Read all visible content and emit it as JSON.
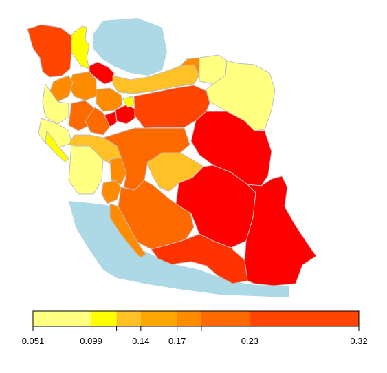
{
  "map": {
    "water_color": "#add8e6",
    "province_border_color": "#bdbdbd",
    "provinces": [
      {
        "name": "west-azerbaijan-north",
        "color": "#ff4500",
        "value": 0.2
      },
      {
        "name": "ardabil",
        "color": "#ffff00",
        "value": 0.1
      },
      {
        "name": "guilan",
        "color": "#ff0000",
        "value": 0.3
      },
      {
        "name": "mazandaran",
        "color": "#ffc125",
        "value": 0.13
      },
      {
        "name": "golestan",
        "color": "#ff8c00",
        "value": 0.16
      },
      {
        "name": "north-khorasan",
        "color": "#ffff80",
        "value": 0.06
      },
      {
        "name": "razavi-khorasan",
        "color": "#ffff80",
        "value": 0.06
      },
      {
        "name": "south-khorasan",
        "color": "#ff0000",
        "value": 0.28
      },
      {
        "name": "semnan",
        "color": "#ff4500",
        "value": 0.21
      },
      {
        "name": "tehran",
        "color": "#ff0000",
        "value": 0.3
      },
      {
        "name": "qom",
        "color": "#ff0000",
        "value": 0.27
      },
      {
        "name": "alborz",
        "color": "#ffff00",
        "value": 0.1
      },
      {
        "name": "qazvin",
        "color": "#ff8c00",
        "value": 0.16
      },
      {
        "name": "zanjan",
        "color": "#ff8c00",
        "value": 0.15
      },
      {
        "name": "east-azerbaijan",
        "color": "#ff8c00",
        "value": 0.16
      },
      {
        "name": "kurdistan",
        "color": "#ffff80",
        "value": 0.07
      },
      {
        "name": "kermanshah",
        "color": "#ffff80",
        "value": 0.07
      },
      {
        "name": "ilam",
        "color": "#ffff00",
        "value": 0.1
      },
      {
        "name": "hamadan",
        "color": "#ff6a00",
        "value": 0.18
      },
      {
        "name": "markazi",
        "color": "#ff6a00",
        "value": 0.18
      },
      {
        "name": "lorestan",
        "color": "#ffff80",
        "value": 0.07
      },
      {
        "name": "khuzestan",
        "color": "#ffc125",
        "value": 0.13
      },
      {
        "name": "chaharmahal",
        "color": "#ff8c00",
        "value": 0.15
      },
      {
        "name": "kohgiluyeh",
        "color": "#ff8c00",
        "value": 0.15
      },
      {
        "name": "isfahan",
        "color": "#ff6a00",
        "value": 0.18
      },
      {
        "name": "yazd",
        "color": "#ffc125",
        "value": 0.13
      },
      {
        "name": "fars",
        "color": "#ff6a00",
        "value": 0.18
      },
      {
        "name": "bushehr",
        "color": "#ff8c00",
        "value": 0.16
      },
      {
        "name": "kerman",
        "color": "#ff0000",
        "value": 0.28
      },
      {
        "name": "hormozgan",
        "color": "#ff3300",
        "value": 0.24
      },
      {
        "name": "sistan-baluchestan",
        "color": "#ff0000",
        "value": 0.3
      }
    ]
  },
  "legend": {
    "breaks": [
      0.051,
      0.099,
      0.12,
      0.14,
      0.17,
      0.19,
      0.23,
      0.32
    ],
    "colors": [
      "#ffff80",
      "#ffff00",
      "#ffc125",
      "#ffa500",
      "#ff8c00",
      "#ff6a00",
      "#ff4500",
      "#ff0000"
    ],
    "tick_labels": [
      "0.051",
      "0.099",
      "0.14",
      "0.17",
      "0.23",
      "0.32"
    ],
    "tick_values": [
      0.051,
      0.099,
      0.14,
      0.17,
      0.23,
      0.32
    ],
    "minor_ticks": [
      0.12,
      0.19
    ]
  }
}
